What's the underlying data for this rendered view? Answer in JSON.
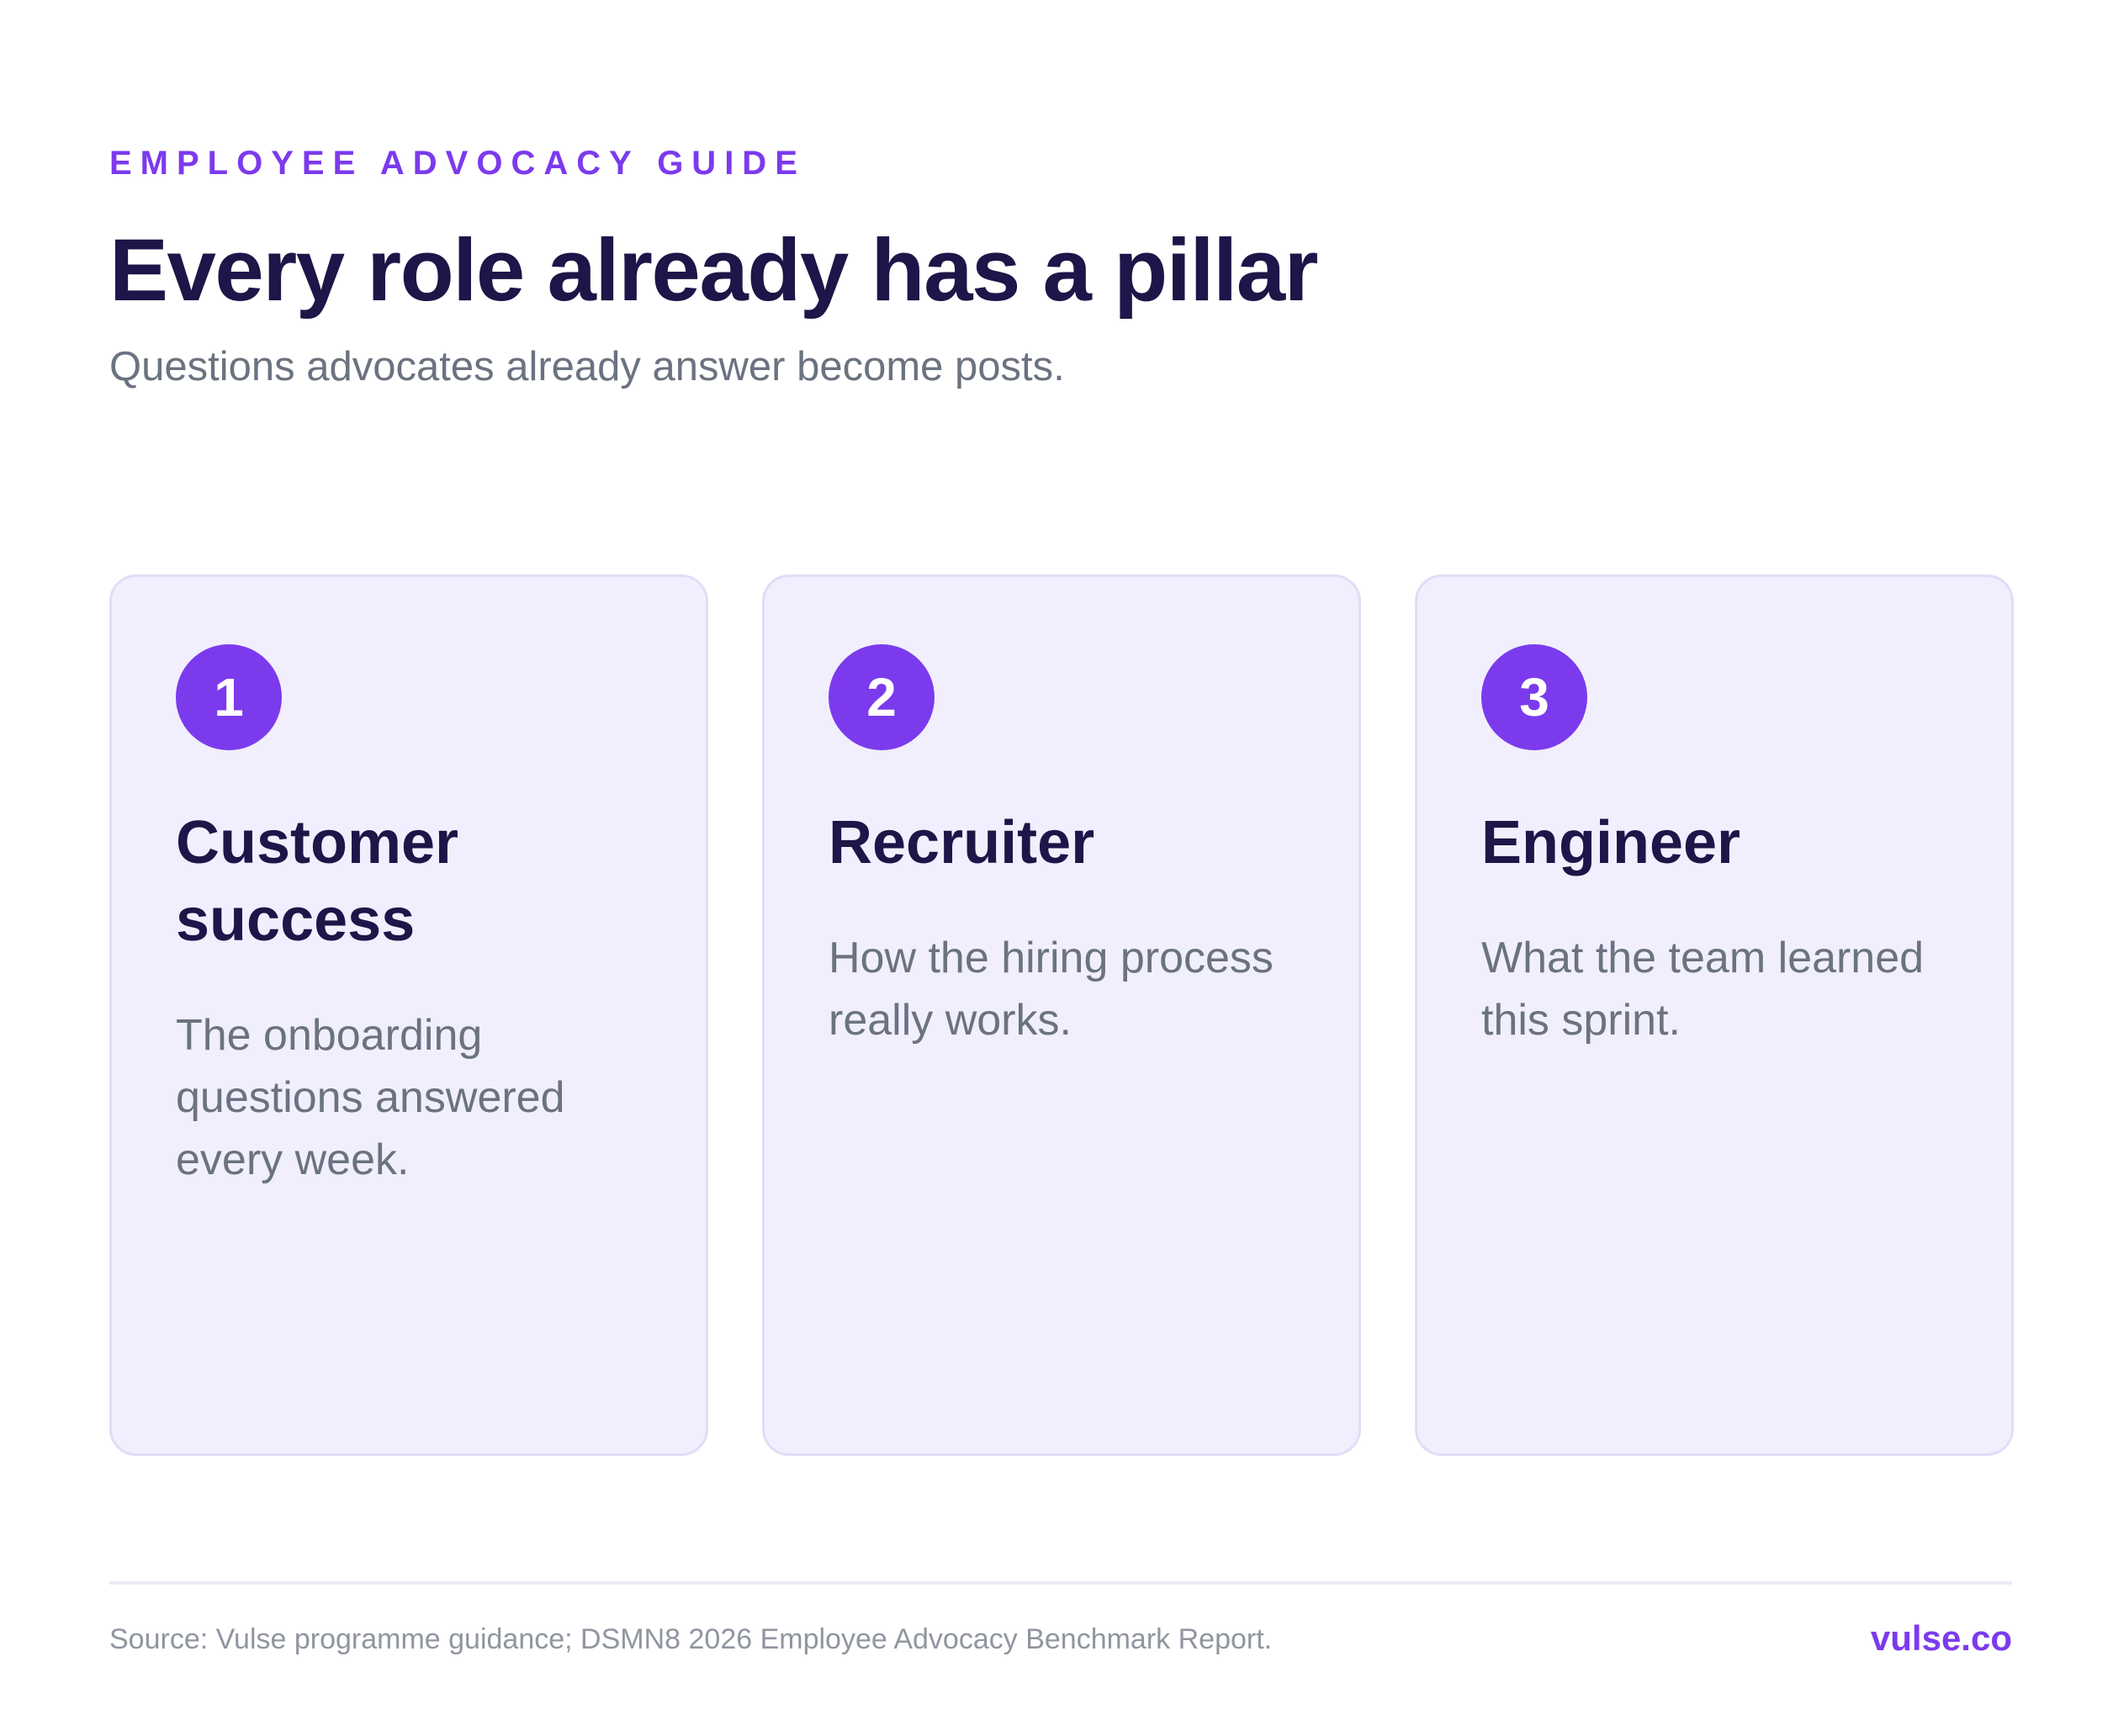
{
  "header": {
    "eyebrow": "EMPLOYEE ADVOCACY GUIDE",
    "title": "Every role already has a pillar",
    "subtitle": "Questions advocates already answer become posts."
  },
  "cards": [
    {
      "number": "1",
      "role": "Customer success",
      "description": "The onboarding questions answered every week."
    },
    {
      "number": "2",
      "role": "Recruiter",
      "description": "How the hiring process really works."
    },
    {
      "number": "3",
      "role": "Engineer",
      "description": "What the team learned this sprint."
    }
  ],
  "footer": {
    "source": "Source: Vulse programme guidance; DSMN8 2026 Employee Advocacy Benchmark Report.",
    "brand": "vulse.co"
  },
  "colors": {
    "accent": "#7c3aed",
    "heading": "#1e1548",
    "body_text": "#6b7280",
    "card_background": "#f1effd",
    "card_border": "#e2dcf7"
  }
}
